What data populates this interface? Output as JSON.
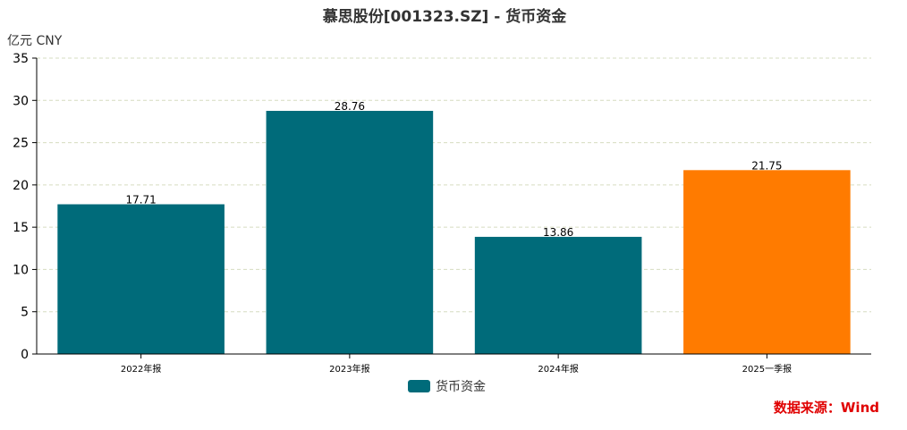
{
  "title": "慕思股份[001323.SZ] - 货币资金",
  "unit_label": "亿元  CNY",
  "source": "数据来源：Wind",
  "colors": {
    "primary": "#006b7a",
    "highlight": "#ff7b00",
    "grid": "#d6dcc0",
    "axis": "#000000"
  },
  "chart_data": {
    "type": "bar",
    "title": "慕思股份[001323.SZ] - 货币资金",
    "ylabel": "亿元  CNY",
    "xlabel": "",
    "categories": [
      "2022年报",
      "2023年报",
      "2024年报",
      "2025一季报"
    ],
    "series": [
      {
        "name": "货币资金",
        "values": [
          17.71,
          28.76,
          13.86,
          21.75
        ],
        "value_labels": [
          "17.71",
          "28.76",
          "13.86",
          "21.75"
        ]
      }
    ],
    "highlight_index": 3,
    "ylim": [
      0,
      35
    ],
    "yticks": [
      0,
      5,
      10,
      15,
      20,
      25,
      30,
      35
    ],
    "ytick_labels": [
      "0",
      "5",
      "10",
      "15",
      "20",
      "25",
      "30",
      "35"
    ],
    "grid": true,
    "legend_position": "bottom-center"
  }
}
